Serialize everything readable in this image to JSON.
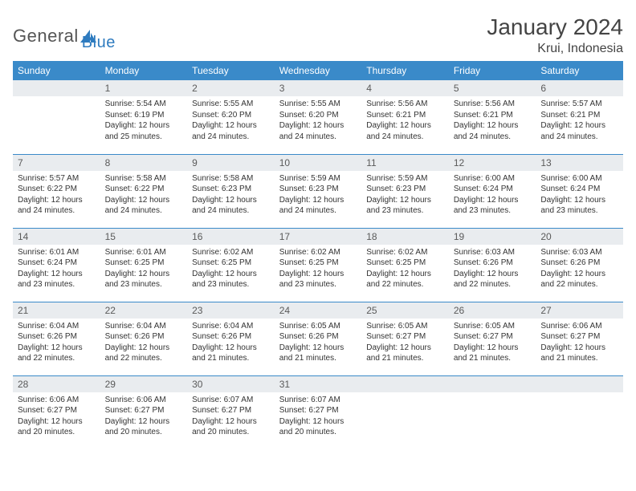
{
  "branding": {
    "word1": "General",
    "word2": "Blue",
    "word1_color": "#555555",
    "word2_color": "#2e7bbf",
    "icon_color": "#2e7bbf"
  },
  "header": {
    "month_title": "January 2024",
    "location": "Krui, Indonesia",
    "title_color": "#444444",
    "title_fontsize": 28
  },
  "style": {
    "header_row_bg": "#3a8ac9",
    "header_row_text": "#ffffff",
    "daynum_bg": "#e9ecef",
    "daynum_text": "#5a5a5a",
    "row_border_color": "#3a8ac9",
    "body_text_color": "#333333",
    "body_fontsize": 10
  },
  "calendar": {
    "type": "table",
    "columns": [
      "Sunday",
      "Monday",
      "Tuesday",
      "Wednesday",
      "Thursday",
      "Friday",
      "Saturday"
    ],
    "start_day_index": 1,
    "days": [
      {
        "n": 1,
        "sunrise": "5:54 AM",
        "sunset": "6:19 PM",
        "daylight": "12 hours and 25 minutes."
      },
      {
        "n": 2,
        "sunrise": "5:55 AM",
        "sunset": "6:20 PM",
        "daylight": "12 hours and 24 minutes."
      },
      {
        "n": 3,
        "sunrise": "5:55 AM",
        "sunset": "6:20 PM",
        "daylight": "12 hours and 24 minutes."
      },
      {
        "n": 4,
        "sunrise": "5:56 AM",
        "sunset": "6:21 PM",
        "daylight": "12 hours and 24 minutes."
      },
      {
        "n": 5,
        "sunrise": "5:56 AM",
        "sunset": "6:21 PM",
        "daylight": "12 hours and 24 minutes."
      },
      {
        "n": 6,
        "sunrise": "5:57 AM",
        "sunset": "6:21 PM",
        "daylight": "12 hours and 24 minutes."
      },
      {
        "n": 7,
        "sunrise": "5:57 AM",
        "sunset": "6:22 PM",
        "daylight": "12 hours and 24 minutes."
      },
      {
        "n": 8,
        "sunrise": "5:58 AM",
        "sunset": "6:22 PM",
        "daylight": "12 hours and 24 minutes."
      },
      {
        "n": 9,
        "sunrise": "5:58 AM",
        "sunset": "6:23 PM",
        "daylight": "12 hours and 24 minutes."
      },
      {
        "n": 10,
        "sunrise": "5:59 AM",
        "sunset": "6:23 PM",
        "daylight": "12 hours and 24 minutes."
      },
      {
        "n": 11,
        "sunrise": "5:59 AM",
        "sunset": "6:23 PM",
        "daylight": "12 hours and 23 minutes."
      },
      {
        "n": 12,
        "sunrise": "6:00 AM",
        "sunset": "6:24 PM",
        "daylight": "12 hours and 23 minutes."
      },
      {
        "n": 13,
        "sunrise": "6:00 AM",
        "sunset": "6:24 PM",
        "daylight": "12 hours and 23 minutes."
      },
      {
        "n": 14,
        "sunrise": "6:01 AM",
        "sunset": "6:24 PM",
        "daylight": "12 hours and 23 minutes."
      },
      {
        "n": 15,
        "sunrise": "6:01 AM",
        "sunset": "6:25 PM",
        "daylight": "12 hours and 23 minutes."
      },
      {
        "n": 16,
        "sunrise": "6:02 AM",
        "sunset": "6:25 PM",
        "daylight": "12 hours and 23 minutes."
      },
      {
        "n": 17,
        "sunrise": "6:02 AM",
        "sunset": "6:25 PM",
        "daylight": "12 hours and 23 minutes."
      },
      {
        "n": 18,
        "sunrise": "6:02 AM",
        "sunset": "6:25 PM",
        "daylight": "12 hours and 22 minutes."
      },
      {
        "n": 19,
        "sunrise": "6:03 AM",
        "sunset": "6:26 PM",
        "daylight": "12 hours and 22 minutes."
      },
      {
        "n": 20,
        "sunrise": "6:03 AM",
        "sunset": "6:26 PM",
        "daylight": "12 hours and 22 minutes."
      },
      {
        "n": 21,
        "sunrise": "6:04 AM",
        "sunset": "6:26 PM",
        "daylight": "12 hours and 22 minutes."
      },
      {
        "n": 22,
        "sunrise": "6:04 AM",
        "sunset": "6:26 PM",
        "daylight": "12 hours and 22 minutes."
      },
      {
        "n": 23,
        "sunrise": "6:04 AM",
        "sunset": "6:26 PM",
        "daylight": "12 hours and 21 minutes."
      },
      {
        "n": 24,
        "sunrise": "6:05 AM",
        "sunset": "6:26 PM",
        "daylight": "12 hours and 21 minutes."
      },
      {
        "n": 25,
        "sunrise": "6:05 AM",
        "sunset": "6:27 PM",
        "daylight": "12 hours and 21 minutes."
      },
      {
        "n": 26,
        "sunrise": "6:05 AM",
        "sunset": "6:27 PM",
        "daylight": "12 hours and 21 minutes."
      },
      {
        "n": 27,
        "sunrise": "6:06 AM",
        "sunset": "6:27 PM",
        "daylight": "12 hours and 21 minutes."
      },
      {
        "n": 28,
        "sunrise": "6:06 AM",
        "sunset": "6:27 PM",
        "daylight": "12 hours and 20 minutes."
      },
      {
        "n": 29,
        "sunrise": "6:06 AM",
        "sunset": "6:27 PM",
        "daylight": "12 hours and 20 minutes."
      },
      {
        "n": 30,
        "sunrise": "6:07 AM",
        "sunset": "6:27 PM",
        "daylight": "12 hours and 20 minutes."
      },
      {
        "n": 31,
        "sunrise": "6:07 AM",
        "sunset": "6:27 PM",
        "daylight": "12 hours and 20 minutes."
      }
    ],
    "labels": {
      "sunrise_prefix": "Sunrise: ",
      "sunset_prefix": "Sunset: ",
      "daylight_prefix": "Daylight: "
    }
  }
}
